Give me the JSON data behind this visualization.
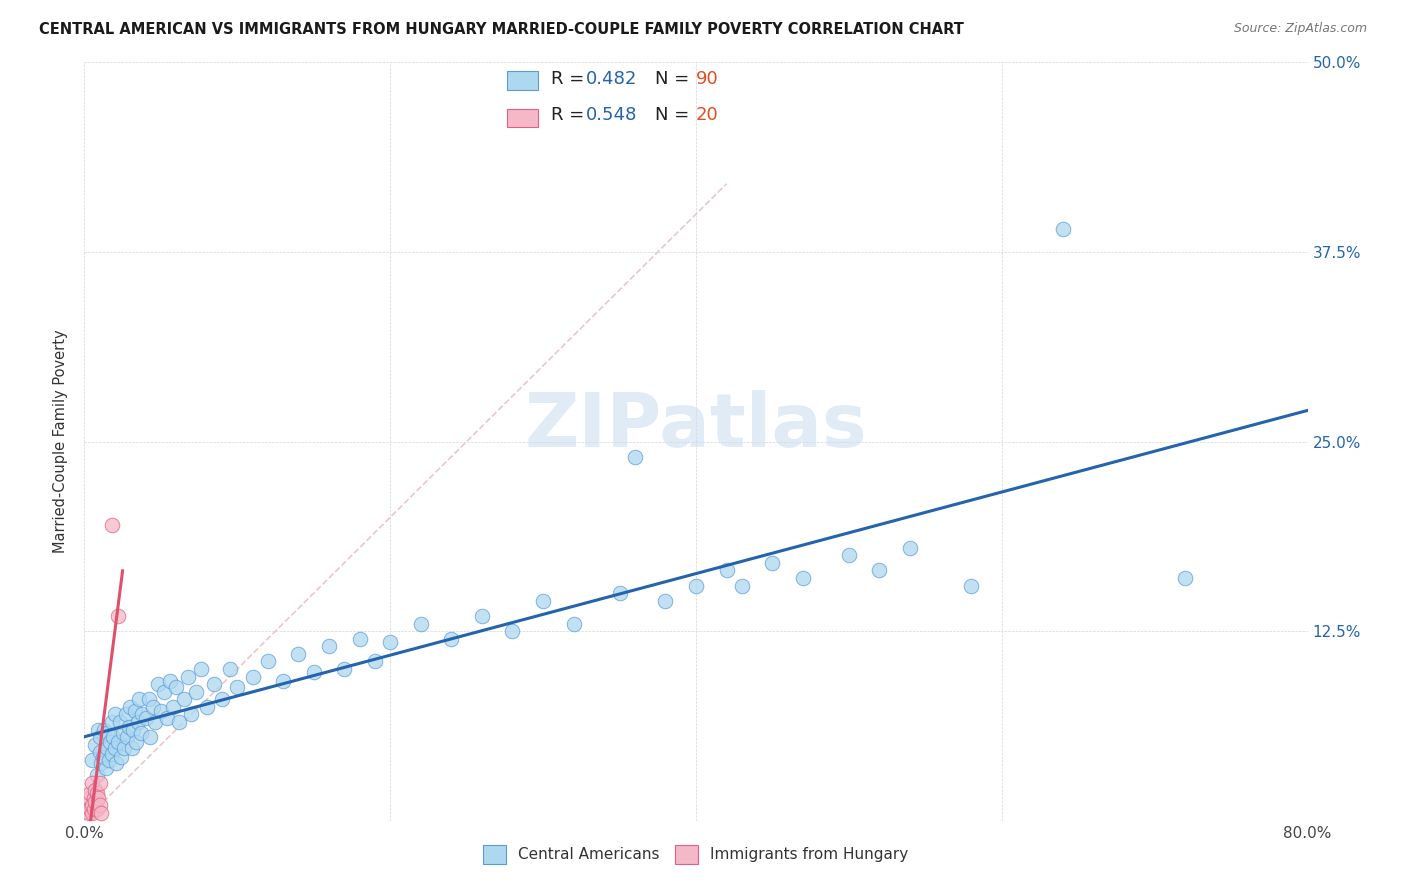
{
  "title": "CENTRAL AMERICAN VS IMMIGRANTS FROM HUNGARY MARRIED-COUPLE FAMILY POVERTY CORRELATION CHART",
  "source": "Source: ZipAtlas.com",
  "ylabel": "Married-Couple Family Poverty",
  "xlim": [
    0,
    0.8
  ],
  "ylim": [
    0,
    0.5
  ],
  "xticks": [
    0.0,
    0.2,
    0.4,
    0.6,
    0.8
  ],
  "xticklabels": [
    "0.0%",
    "",
    "",
    "",
    "80.0%"
  ],
  "yticks": [
    0.0,
    0.125,
    0.25,
    0.375,
    0.5
  ],
  "yticklabels_right": [
    "",
    "12.5%",
    "25.0%",
    "37.5%",
    "50.0%"
  ],
  "r_blue": 0.482,
  "n_blue": 90,
  "r_pink": 0.548,
  "n_pink": 20,
  "color_blue": "#ADD8F0",
  "color_pink": "#F4B8C8",
  "edge_blue": "#5B9BD5",
  "edge_pink": "#E06080",
  "line_blue": "#2464AE",
  "line_pink": "#E0506A",
  "diagonal_color": "#E8C0C8",
  "watermark": "ZIPatlas",
  "blue_x": [
    0.005,
    0.007,
    0.008,
    0.009,
    0.01,
    0.01,
    0.011,
    0.012,
    0.013,
    0.014,
    0.015,
    0.015,
    0.016,
    0.017,
    0.018,
    0.018,
    0.019,
    0.02,
    0.02,
    0.021,
    0.022,
    0.023,
    0.024,
    0.025,
    0.026,
    0.027,
    0.028,
    0.029,
    0.03,
    0.031,
    0.032,
    0.033,
    0.034,
    0.035,
    0.036,
    0.037,
    0.038,
    0.04,
    0.042,
    0.043,
    0.045,
    0.046,
    0.048,
    0.05,
    0.052,
    0.054,
    0.056,
    0.058,
    0.06,
    0.062,
    0.065,
    0.068,
    0.07,
    0.073,
    0.076,
    0.08,
    0.085,
    0.09,
    0.095,
    0.1,
    0.11,
    0.12,
    0.13,
    0.14,
    0.15,
    0.16,
    0.17,
    0.18,
    0.19,
    0.2,
    0.22,
    0.24,
    0.26,
    0.28,
    0.3,
    0.32,
    0.35,
    0.36,
    0.38,
    0.4,
    0.42,
    0.43,
    0.45,
    0.47,
    0.5,
    0.52,
    0.54,
    0.58,
    0.64,
    0.72
  ],
  "blue_y": [
    0.04,
    0.05,
    0.03,
    0.06,
    0.045,
    0.055,
    0.038,
    0.042,
    0.06,
    0.035,
    0.048,
    0.058,
    0.04,
    0.052,
    0.065,
    0.044,
    0.055,
    0.048,
    0.07,
    0.038,
    0.052,
    0.065,
    0.042,
    0.058,
    0.048,
    0.07,
    0.055,
    0.062,
    0.075,
    0.048,
    0.06,
    0.072,
    0.052,
    0.065,
    0.08,
    0.058,
    0.07,
    0.068,
    0.08,
    0.055,
    0.075,
    0.065,
    0.09,
    0.072,
    0.085,
    0.068,
    0.092,
    0.075,
    0.088,
    0.065,
    0.08,
    0.095,
    0.07,
    0.085,
    0.1,
    0.075,
    0.09,
    0.08,
    0.1,
    0.088,
    0.095,
    0.105,
    0.092,
    0.11,
    0.098,
    0.115,
    0.1,
    0.12,
    0.105,
    0.118,
    0.13,
    0.12,
    0.135,
    0.125,
    0.145,
    0.13,
    0.15,
    0.24,
    0.145,
    0.155,
    0.165,
    0.155,
    0.17,
    0.16,
    0.175,
    0.165,
    0.18,
    0.155,
    0.39,
    0.16
  ],
  "pink_x": [
    0.002,
    0.003,
    0.003,
    0.004,
    0.004,
    0.005,
    0.005,
    0.005,
    0.006,
    0.006,
    0.007,
    0.007,
    0.008,
    0.008,
    0.009,
    0.01,
    0.01,
    0.011,
    0.018,
    0.022
  ],
  "pink_y": [
    0.01,
    0.005,
    0.015,
    0.008,
    0.018,
    0.005,
    0.01,
    0.025,
    0.008,
    0.015,
    0.012,
    0.02,
    0.008,
    0.018,
    0.015,
    0.01,
    0.025,
    0.005,
    0.195,
    0.135
  ],
  "legend_text_color": "#2464AE",
  "legend_n_color": "#E05020",
  "title_fontsize": 10.5,
  "source_fontsize": 9,
  "tick_fontsize": 11
}
